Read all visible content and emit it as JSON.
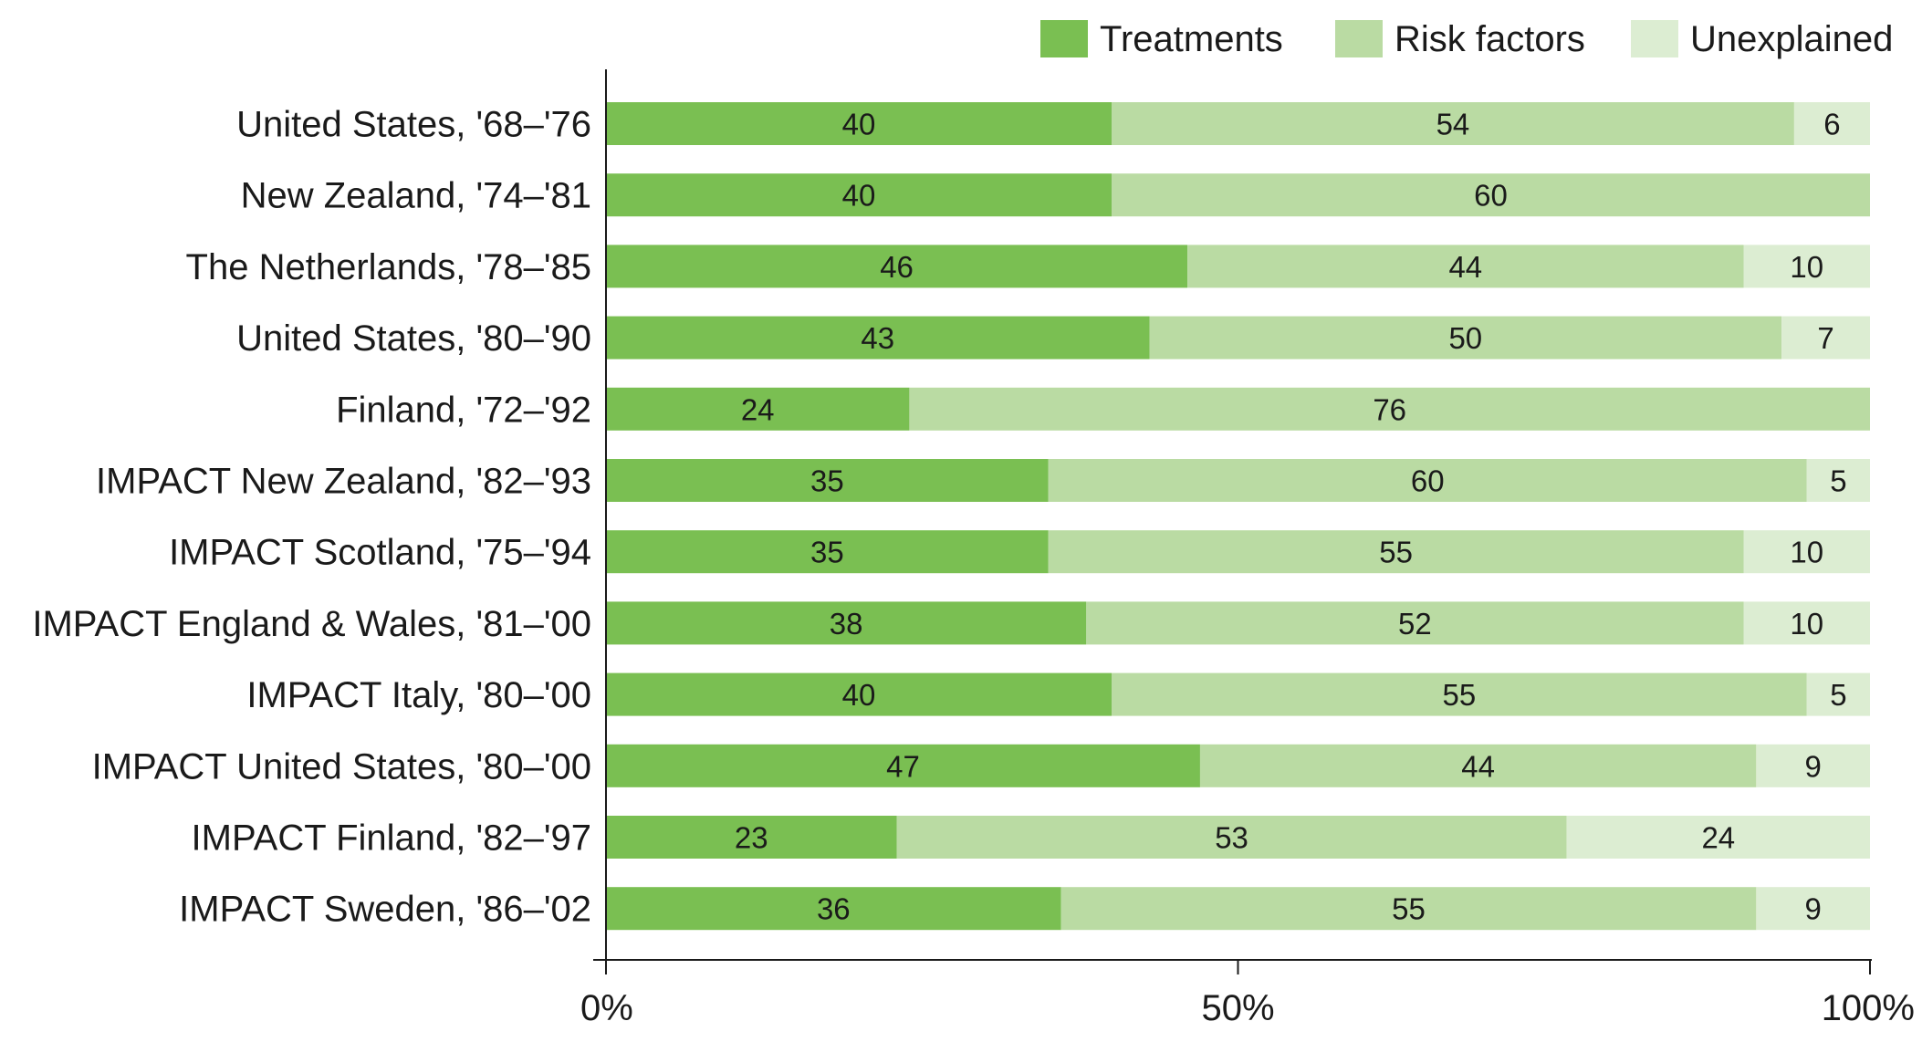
{
  "chart_data": {
    "type": "bar",
    "orientation": "horizontal",
    "stacked": true,
    "categories": [
      "United States, '68–'76",
      "New Zealand, '74–'81",
      "The Netherlands, '78–'85",
      "United States, '80–'90",
      "Finland, '72–'92",
      "IMPACT New Zealand, '82–'93",
      "IMPACT Scotland, '75–'94",
      "IMPACT England & Wales, '81–'00",
      "IMPACT Italy, '80–'00",
      "IMPACT United States, '80–'00",
      "IMPACT Finland, '82–'97",
      "IMPACT Sweden, '86–'02"
    ],
    "series": [
      {
        "name": "Treatments",
        "color": "#7abf52",
        "values": [
          40,
          40,
          46,
          43,
          24,
          35,
          35,
          38,
          40,
          47,
          23,
          36
        ]
      },
      {
        "name": "Risk factors",
        "color": "#badba3",
        "values": [
          54,
          60,
          44,
          50,
          76,
          60,
          55,
          52,
          55,
          44,
          53,
          55
        ]
      },
      {
        "name": "Unexplained",
        "color": "#dcedd2",
        "values": [
          6,
          0,
          10,
          7,
          0,
          5,
          10,
          10,
          5,
          9,
          24,
          9
        ]
      }
    ],
    "xlim": [
      0,
      100
    ],
    "xticks": [
      {
        "value": 0,
        "label": "0%"
      },
      {
        "value": 50,
        "label": "50%"
      },
      {
        "value": 100,
        "label": "100%"
      }
    ],
    "title": "",
    "xlabel": "",
    "ylabel": "",
    "legend_position": "top-right",
    "grid": false
  }
}
